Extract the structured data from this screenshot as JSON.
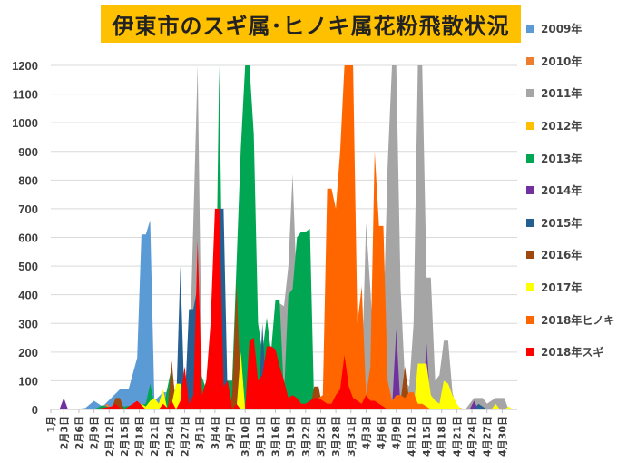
{
  "chart_data": {
    "type": "area",
    "title": "伊東市のスギ属･ヒノキ属花粉飛散状況",
    "xlabel": "",
    "ylabel": "",
    "ylim": [
      0,
      1200
    ],
    "y_ticks": [
      0,
      100,
      200,
      300,
      400,
      500,
      600,
      700,
      800,
      900,
      1000,
      1100,
      1200
    ],
    "x_ticks": [
      "1月",
      "2月3日",
      "2月6日",
      "2月9日",
      "2月12日",
      "2月15日",
      "2月18日",
      "2月21日",
      "2月24日",
      "2月27日",
      "3月1日",
      "3月4日",
      "3月7日",
      "3月10日",
      "3月13日",
      "3月16日",
      "3月19日",
      "3月22日",
      "3月25日",
      "3月28日",
      "3月31日",
      "4月3日",
      "4月6日",
      "4月9日",
      "4月12日",
      "4月15日",
      "4月18日",
      "4月21日",
      "4月24日",
      "4月27日",
      "4月30日"
    ],
    "grid": true,
    "legend_position": "right",
    "series": [
      {
        "name": "2009年",
        "color": "#5b9bd5",
        "points": [
          [
            0,
            0
          ],
          [
            5,
            0
          ],
          [
            8,
            5
          ],
          [
            10,
            30
          ],
          [
            12,
            10
          ],
          [
            16,
            70
          ],
          [
            18,
            70
          ],
          [
            20,
            180
          ],
          [
            21,
            610
          ],
          [
            22,
            610
          ],
          [
            23,
            660
          ],
          [
            24,
            30
          ],
          [
            26,
            60
          ],
          [
            27,
            60
          ],
          [
            28,
            0
          ]
        ]
      },
      {
        "name": "2010年",
        "color": "#ed7d31",
        "points": [
          [
            10,
            0
          ],
          [
            12,
            5
          ],
          [
            13,
            20
          ],
          [
            14,
            5
          ],
          [
            15,
            0
          ]
        ]
      },
      {
        "name": "2011年",
        "color": "#a5a5a5",
        "points": [
          [
            25,
            0
          ],
          [
            27,
            70
          ],
          [
            29,
            0
          ],
          [
            30,
            50
          ],
          [
            31,
            20
          ],
          [
            32,
            100
          ],
          [
            34,
            1200
          ],
          [
            35,
            80
          ],
          [
            37,
            30
          ],
          [
            40,
            50
          ],
          [
            43,
            30
          ],
          [
            48,
            120
          ],
          [
            50,
            80
          ],
          [
            52,
            300
          ],
          [
            53,
            370
          ],
          [
            54,
            360
          ],
          [
            55,
            500
          ],
          [
            56,
            820
          ],
          [
            57,
            400
          ],
          [
            58,
            150
          ],
          [
            60,
            0
          ],
          [
            62,
            0
          ],
          [
            71,
            0
          ],
          [
            72,
            100
          ],
          [
            73,
            650
          ],
          [
            74,
            420
          ],
          [
            75,
            150
          ],
          [
            76,
            0
          ],
          [
            77,
            300
          ],
          [
            78,
            850
          ],
          [
            79,
            1200
          ],
          [
            80,
            1200
          ],
          [
            81,
            420
          ],
          [
            82,
            100
          ],
          [
            83,
            80
          ],
          [
            84,
            300
          ],
          [
            85,
            1200
          ],
          [
            86,
            1200
          ],
          [
            87,
            460
          ],
          [
            88,
            460
          ],
          [
            89,
            100
          ],
          [
            90,
            120
          ],
          [
            91,
            240
          ],
          [
            92,
            240
          ],
          [
            93,
            60
          ],
          [
            94,
            0
          ],
          [
            96,
            0
          ],
          [
            97,
            20
          ],
          [
            98,
            40
          ],
          [
            100,
            40
          ],
          [
            101,
            20
          ],
          [
            102,
            30
          ],
          [
            103,
            40
          ],
          [
            104,
            40
          ],
          [
            105,
            40
          ],
          [
            106,
            0
          ]
        ]
      },
      {
        "name": "2012年",
        "color": "#ffc000",
        "points": [
          [
            90,
            0
          ],
          [
            92,
            20
          ],
          [
            94,
            10
          ],
          [
            96,
            0
          ]
        ]
      },
      {
        "name": "2013年",
        "color": "#00a651",
        "points": [
          [
            10,
            0
          ],
          [
            12,
            15
          ],
          [
            14,
            5
          ],
          [
            22,
            20
          ],
          [
            23,
            90
          ],
          [
            24,
            20
          ],
          [
            26,
            0
          ],
          [
            28,
            150
          ],
          [
            29,
            20
          ],
          [
            31,
            10
          ],
          [
            32,
            180
          ],
          [
            33,
            200
          ],
          [
            36,
            70
          ],
          [
            38,
            100
          ],
          [
            39,
            1200
          ],
          [
            40,
            100
          ],
          [
            42,
            100
          ],
          [
            43,
            500
          ],
          [
            44,
            910
          ],
          [
            45,
            1200
          ],
          [
            46,
            1200
          ],
          [
            47,
            960
          ],
          [
            48,
            300
          ],
          [
            49,
            200
          ],
          [
            50,
            320
          ],
          [
            51,
            200
          ],
          [
            52,
            380
          ],
          [
            53,
            380
          ],
          [
            54,
            50
          ],
          [
            55,
            400
          ],
          [
            56,
            420
          ],
          [
            57,
            600
          ],
          [
            58,
            620
          ],
          [
            59,
            620
          ],
          [
            60,
            630
          ],
          [
            61,
            0
          ]
        ]
      },
      {
        "name": "2014年",
        "color": "#7030a0",
        "points": [
          [
            2,
            0
          ],
          [
            3,
            40
          ],
          [
            4,
            0
          ],
          [
            5,
            0
          ],
          [
            79,
            0
          ],
          [
            80,
            280
          ],
          [
            81,
            0
          ],
          [
            86,
            0
          ],
          [
            87,
            230
          ],
          [
            88,
            0
          ],
          [
            97,
            0
          ],
          [
            98,
            30
          ],
          [
            99,
            0
          ]
        ]
      },
      {
        "name": "2015年",
        "color": "#255e91",
        "points": [
          [
            18,
            0
          ],
          [
            20,
            15
          ],
          [
            26,
            0
          ],
          [
            29,
            0
          ],
          [
            30,
            500
          ],
          [
            31,
            10
          ],
          [
            32,
            350
          ],
          [
            33,
            350
          ],
          [
            34,
            430
          ],
          [
            35,
            0
          ],
          [
            36,
            0
          ],
          [
            37,
            10
          ],
          [
            38,
            30
          ],
          [
            39,
            700
          ],
          [
            40,
            700
          ],
          [
            41,
            0
          ],
          [
            48,
            0
          ],
          [
            49,
            300
          ],
          [
            50,
            0
          ],
          [
            52,
            0
          ],
          [
            53,
            60
          ],
          [
            54,
            0
          ],
          [
            90,
            0
          ],
          [
            91,
            50
          ],
          [
            92,
            0
          ],
          [
            98,
            0
          ],
          [
            99,
            20
          ],
          [
            100,
            10
          ],
          [
            101,
            0
          ]
        ]
      },
      {
        "name": "2016年",
        "color": "#9e480e",
        "points": [
          [
            14,
            0
          ],
          [
            15,
            40
          ],
          [
            16,
            40
          ],
          [
            17,
            0
          ],
          [
            27,
            0
          ],
          [
            28,
            170
          ],
          [
            29,
            0
          ],
          [
            33,
            0
          ],
          [
            34,
            230
          ],
          [
            35,
            0
          ],
          [
            41,
            0
          ],
          [
            42,
            50
          ],
          [
            43,
            440
          ],
          [
            44,
            70
          ],
          [
            45,
            20
          ],
          [
            60,
            0
          ],
          [
            61,
            80
          ],
          [
            62,
            80
          ],
          [
            63,
            0
          ],
          [
            79,
            0
          ],
          [
            80,
            40
          ],
          [
            81,
            30
          ],
          [
            82,
            150
          ],
          [
            83,
            30
          ],
          [
            84,
            0
          ]
        ]
      },
      {
        "name": "2017年",
        "color": "#ffff00",
        "points": [
          [
            20,
            0
          ],
          [
            21,
            20
          ],
          [
            22,
            10
          ],
          [
            23,
            30
          ],
          [
            24,
            40
          ],
          [
            25,
            20
          ],
          [
            26,
            70
          ],
          [
            27,
            0
          ],
          [
            28,
            20
          ],
          [
            29,
            90
          ],
          [
            30,
            90
          ],
          [
            31,
            0
          ],
          [
            43,
            0
          ],
          [
            44,
            200
          ],
          [
            45,
            0
          ],
          [
            50,
            0
          ],
          [
            51,
            60
          ],
          [
            52,
            0
          ],
          [
            62,
            0
          ],
          [
            63,
            40
          ],
          [
            64,
            0
          ],
          [
            84,
            0
          ],
          [
            85,
            160
          ],
          [
            86,
            160
          ],
          [
            87,
            160
          ],
          [
            88,
            50
          ],
          [
            89,
            30
          ],
          [
            90,
            20
          ],
          [
            91,
            100
          ],
          [
            92,
            90
          ],
          [
            93,
            50
          ],
          [
            94,
            20
          ],
          [
            95,
            0
          ],
          [
            102,
            0
          ],
          [
            103,
            20
          ],
          [
            104,
            0
          ],
          [
            105,
            0
          ],
          [
            106,
            10
          ],
          [
            107,
            0
          ]
        ]
      },
      {
        "name": "2018年ヒノキ",
        "color": "#ff6600",
        "points": [
          [
            60,
            0
          ],
          [
            61,
            20
          ],
          [
            62,
            40
          ],
          [
            63,
            50
          ],
          [
            64,
            770
          ],
          [
            65,
            770
          ],
          [
            66,
            700
          ],
          [
            67,
            900
          ],
          [
            68,
            1200
          ],
          [
            69,
            1200
          ],
          [
            70,
            1200
          ],
          [
            71,
            300
          ],
          [
            72,
            430
          ],
          [
            73,
            50
          ],
          [
            74,
            150
          ],
          [
            75,
            900
          ],
          [
            76,
            640
          ],
          [
            77,
            640
          ],
          [
            78,
            100
          ],
          [
            79,
            30
          ],
          [
            80,
            50
          ],
          [
            81,
            50
          ],
          [
            82,
            40
          ],
          [
            83,
            60
          ],
          [
            84,
            60
          ],
          [
            85,
            20
          ],
          [
            86,
            20
          ],
          [
            87,
            10
          ],
          [
            88,
            0
          ]
        ]
      },
      {
        "name": "2018年スギ",
        "color": "#ff0000",
        "points": [
          [
            10,
            0
          ],
          [
            12,
            5
          ],
          [
            14,
            10
          ],
          [
            15,
            20
          ],
          [
            16,
            5
          ],
          [
            17,
            0
          ],
          [
            18,
            10
          ],
          [
            19,
            20
          ],
          [
            20,
            30
          ],
          [
            21,
            15
          ],
          [
            22,
            0
          ],
          [
            25,
            0
          ],
          [
            26,
            20
          ],
          [
            27,
            5
          ],
          [
            28,
            30
          ],
          [
            29,
            0
          ],
          [
            30,
            30
          ],
          [
            31,
            150
          ],
          [
            32,
            20
          ],
          [
            33,
            50
          ],
          [
            34,
            590
          ],
          [
            35,
            50
          ],
          [
            36,
            100
          ],
          [
            37,
            300
          ],
          [
            38,
            700
          ],
          [
            39,
            700
          ],
          [
            40,
            80
          ],
          [
            41,
            100
          ],
          [
            42,
            0
          ],
          [
            43,
            20
          ],
          [
            44,
            0
          ],
          [
            45,
            0
          ],
          [
            46,
            240
          ],
          [
            47,
            250
          ],
          [
            48,
            100
          ],
          [
            49,
            120
          ],
          [
            50,
            220
          ],
          [
            51,
            220
          ],
          [
            52,
            210
          ],
          [
            53,
            150
          ],
          [
            54,
            100
          ],
          [
            55,
            40
          ],
          [
            56,
            50
          ],
          [
            57,
            40
          ],
          [
            58,
            20
          ],
          [
            59,
            20
          ],
          [
            60,
            30
          ],
          [
            61,
            40
          ],
          [
            62,
            40
          ],
          [
            63,
            30
          ],
          [
            64,
            20
          ],
          [
            65,
            20
          ],
          [
            66,
            50
          ],
          [
            67,
            70
          ],
          [
            68,
            190
          ],
          [
            69,
            80
          ],
          [
            70,
            40
          ],
          [
            71,
            30
          ],
          [
            72,
            20
          ],
          [
            73,
            50
          ],
          [
            74,
            30
          ],
          [
            75,
            30
          ],
          [
            76,
            20
          ],
          [
            77,
            10
          ],
          [
            78,
            0
          ]
        ]
      }
    ]
  }
}
